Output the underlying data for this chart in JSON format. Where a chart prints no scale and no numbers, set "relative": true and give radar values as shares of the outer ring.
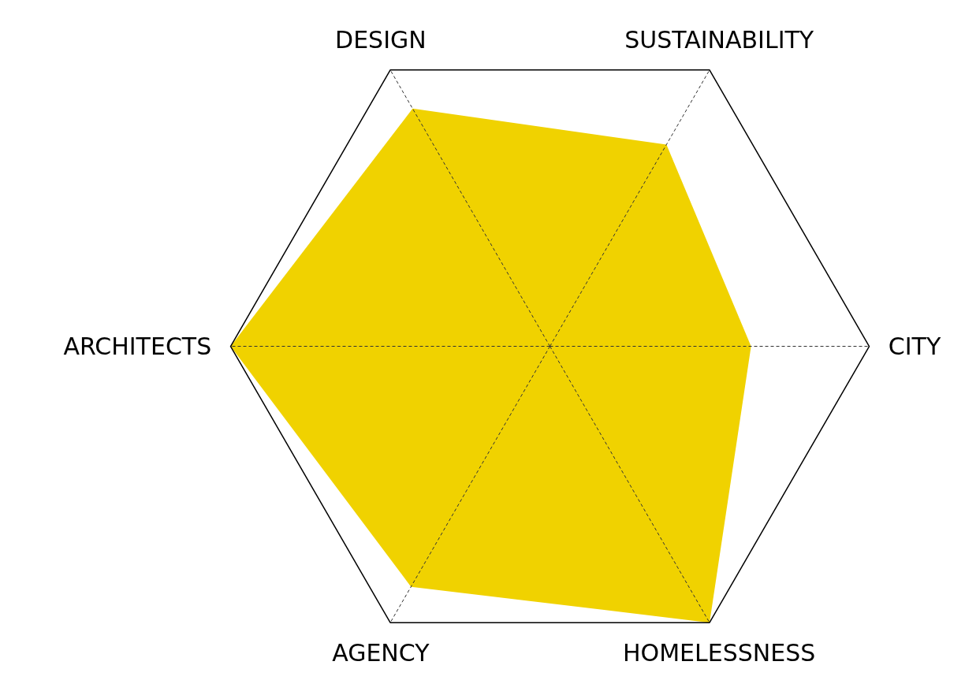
{
  "chart_data": {
    "type": "radar",
    "relative": true,
    "categories": [
      "DESIGN",
      "SUSTAINABILITY",
      "CITY",
      "HOMELESSNESS",
      "AGENCY",
      "ARCHITECTS"
    ],
    "series": [
      {
        "color": "#f0d200",
        "values": [
          0.86,
          0.73,
          0.63,
          1.0,
          0.87,
          1.0
        ]
      }
    ]
  }
}
